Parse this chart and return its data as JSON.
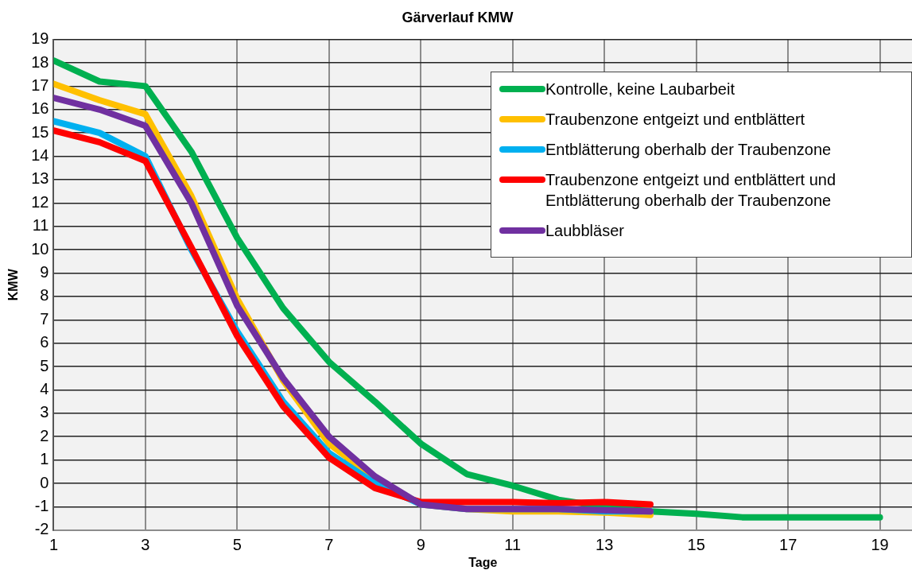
{
  "chart_data": {
    "type": "line",
    "title": "Gärverlauf KMW",
    "xlabel": "Tage",
    "ylabel": "KMW",
    "xlim": [
      1,
      19.7
    ],
    "xticks": [
      1,
      3,
      5,
      7,
      9,
      11,
      13,
      15,
      17,
      19
    ],
    "ylim": [
      -2,
      19
    ],
    "yticks": [
      -2,
      -1,
      0,
      1,
      2,
      3,
      4,
      5,
      6,
      7,
      8,
      9,
      10,
      11,
      12,
      13,
      14,
      15,
      16,
      17,
      18,
      19
    ],
    "grid": true,
    "legend": "top right",
    "marker": "none",
    "line_style": "solid",
    "x": [
      1,
      2,
      3,
      4,
      5,
      6,
      7,
      8,
      9,
      10,
      11,
      12,
      13,
      14,
      15,
      16,
      17,
      18,
      19
    ],
    "series": [
      {
        "name": "Kontrolle, keine Laubarbeit",
        "color": "#00b050",
        "values": [
          18.1,
          17.2,
          17.0,
          14.2,
          10.5,
          7.5,
          5.2,
          3.5,
          1.7,
          0.4,
          -0.1,
          -0.7,
          -1.0,
          -1.2,
          -1.3,
          -1.45,
          -1.45,
          -1.45,
          -1.45
        ]
      },
      {
        "name": "Traubenzone entgeizt und entblättert",
        "color": "#ffc000",
        "values": [
          17.1,
          16.4,
          15.8,
          12.3,
          7.9,
          4.4,
          1.7,
          0.2,
          -0.9,
          -1.1,
          -1.2,
          -1.2,
          -1.25,
          -1.35,
          null,
          null,
          null,
          null,
          null
        ]
      },
      {
        "name": "Entblätterung oberhalb der Traubenzone",
        "color": "#00b0f0",
        "values": [
          15.5,
          15.0,
          14.0,
          10.0,
          6.5,
          3.5,
          1.3,
          0.0,
          -0.9,
          -1.1,
          -1.1,
          -1.1,
          -1.2,
          -1.2,
          null,
          null,
          null,
          null,
          null
        ]
      },
      {
        "name": "Traubenzone entgeizt und entblättert und Entblätterung oberhalb der Traubenzone",
        "color": "#ff0000",
        "values": [
          15.1,
          14.6,
          13.8,
          10.1,
          6.3,
          3.3,
          1.1,
          -0.2,
          -0.8,
          -0.8,
          -0.8,
          -0.85,
          -0.8,
          -0.9,
          null,
          null,
          null,
          null,
          null
        ]
      },
      {
        "name": "Laubbläser",
        "color": "#7030a0",
        "values": [
          16.5,
          16.0,
          15.3,
          12.0,
          7.6,
          4.5,
          2.0,
          0.3,
          -0.9,
          -1.1,
          -1.1,
          -1.1,
          -1.15,
          -1.2,
          null,
          null,
          null,
          null,
          null
        ]
      }
    ]
  }
}
